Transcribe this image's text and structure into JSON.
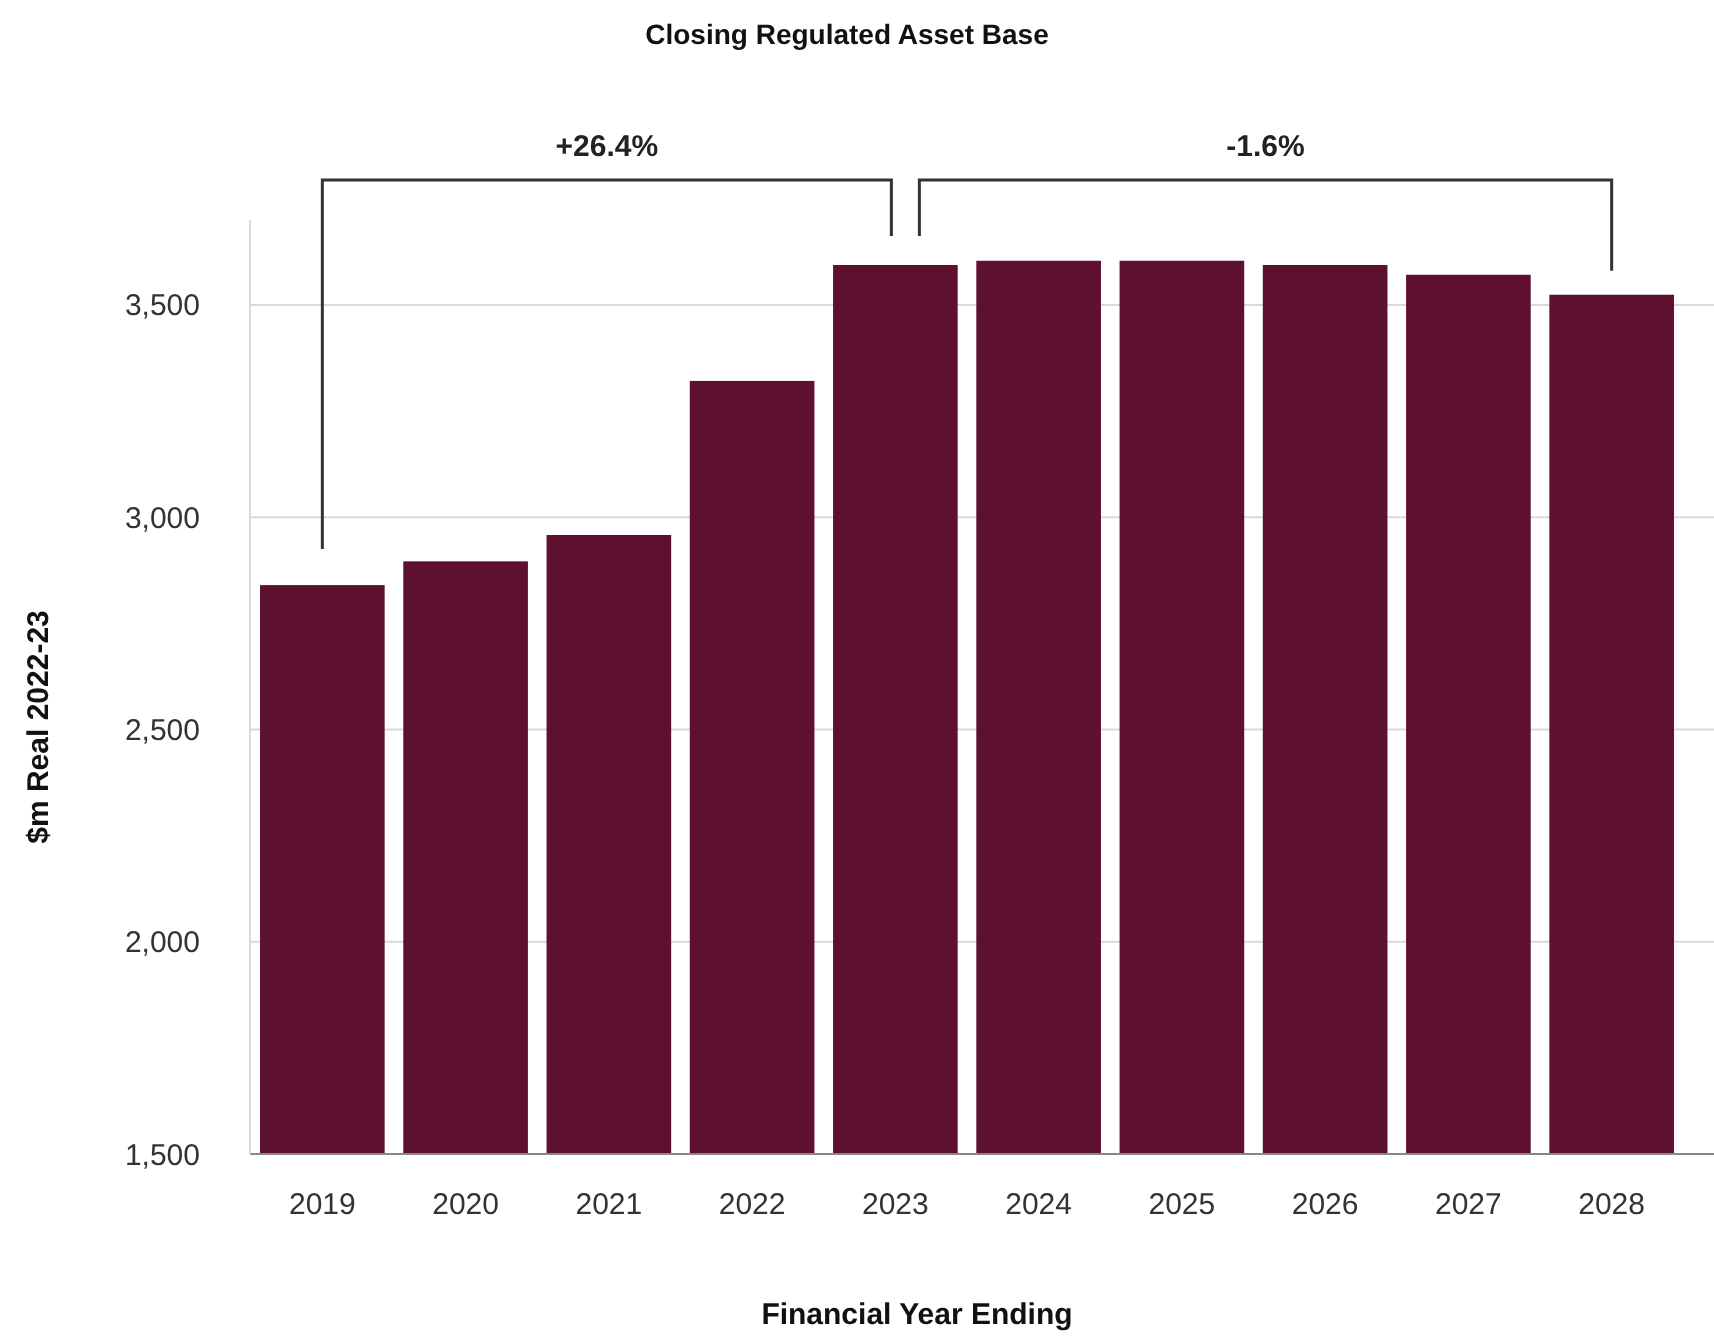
{
  "chart_data": {
    "type": "bar",
    "title": "Closing Regulated Asset Base",
    "xlabel": "Financial Year Ending",
    "ylabel": "$m Real 2022-23",
    "categories": [
      "2019",
      "2020",
      "2021",
      "2022",
      "2023",
      "2024",
      "2025",
      "2026",
      "2027",
      "2028"
    ],
    "values": [
      2840,
      2896,
      2958,
      3321,
      3594,
      3604,
      3604,
      3594,
      3571,
      3524
    ],
    "color": "#5e1030",
    "ylim": [
      1500,
      3700
    ],
    "yticks": [
      {
        "value": 1500,
        "label": "1,500"
      },
      {
        "value": 2000,
        "label": "2,000"
      },
      {
        "value": 2500,
        "label": "2,500"
      },
      {
        "value": 3000,
        "label": "3,000"
      },
      {
        "value": 3500,
        "label": "3,500"
      }
    ],
    "grid": "y",
    "annotations": [
      "+26.4%",
      "-1.6%"
    ]
  }
}
